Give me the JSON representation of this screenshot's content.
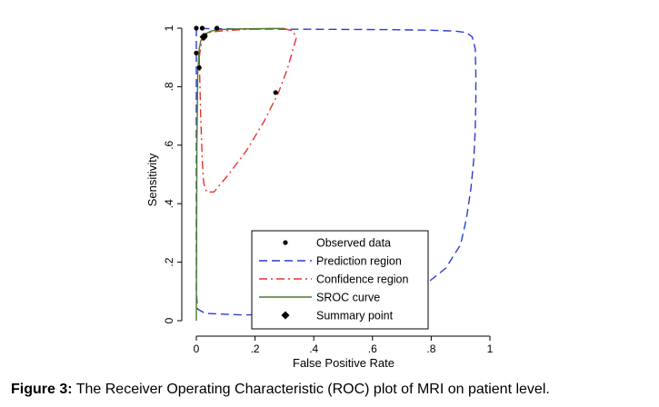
{
  "caption": {
    "label": "Figure 3:",
    "text": " The Receiver Operating Characteristic (ROC) plot of MRI on patient level."
  },
  "chart_data": {
    "type": "scatter",
    "xlabel": "False Positive Rate",
    "ylabel": "Sensitivity",
    "xlim": [
      0,
      1
    ],
    "ylim": [
      0,
      1
    ],
    "x_ticks": [
      {
        "value": 0,
        "label": "0"
      },
      {
        "value": 0.2,
        "label": ".2"
      },
      {
        "value": 0.4,
        "label": ".4"
      },
      {
        "value": 0.6,
        "label": ".6"
      },
      {
        "value": 0.8,
        "label": ".8"
      },
      {
        "value": 1,
        "label": "1"
      }
    ],
    "y_ticks": [
      {
        "value": 0,
        "label": "0"
      },
      {
        "value": 0.2,
        "label": ".2"
      },
      {
        "value": 0.4,
        "label": ".4"
      },
      {
        "value": 0.6,
        "label": ".6"
      },
      {
        "value": 0.8,
        "label": ".8"
      },
      {
        "value": 1,
        "label": "1"
      }
    ],
    "grid": false,
    "legend_position": "bottom-center",
    "series": [
      {
        "name": "Observed data",
        "kind": "points",
        "color": "#000000",
        "x": [
          0.0,
          0.02,
          0.0,
          0.01,
          0.03,
          0.07,
          0.27
        ],
        "y": [
          1.0,
          1.0,
          0.915,
          0.865,
          0.975,
          1.0,
          0.78
        ]
      },
      {
        "name": "Prediction region",
        "kind": "dashed-line",
        "color": "#2b3bd4",
        "x": [
          0.0,
          0.0,
          0.0,
          0.004,
          0.03,
          0.15,
          0.3,
          0.45,
          0.55,
          0.65,
          0.75,
          0.85,
          0.9,
          0.92,
          0.935,
          0.945,
          0.95,
          0.952,
          0.952,
          0.95,
          0.94,
          0.92,
          0.88,
          0.8,
          0.65,
          0.45,
          0.2,
          0.05,
          0.01,
          0.0
        ],
        "y": [
          1.0,
          0.6,
          0.1,
          0.04,
          0.025,
          0.02,
          0.02,
          0.025,
          0.035,
          0.06,
          0.1,
          0.18,
          0.26,
          0.35,
          0.45,
          0.55,
          0.65,
          0.75,
          0.85,
          0.93,
          0.97,
          0.985,
          0.99,
          0.993,
          0.995,
          0.996,
          0.997,
          0.998,
          0.999,
          1.0
        ]
      },
      {
        "name": "Confidence region",
        "kind": "dash-dot-line",
        "color": "#e8322c",
        "x": [
          0.01,
          0.015,
          0.02,
          0.025,
          0.035,
          0.06,
          0.11,
          0.17,
          0.23,
          0.28,
          0.31,
          0.33,
          0.34,
          0.33,
          0.3,
          0.24,
          0.15,
          0.08,
          0.04,
          0.025,
          0.02,
          0.015,
          0.01
        ],
        "y": [
          0.9,
          0.7,
          0.55,
          0.47,
          0.44,
          0.44,
          0.5,
          0.58,
          0.68,
          0.78,
          0.86,
          0.93,
          0.965,
          0.99,
          0.998,
          0.998,
          0.995,
          0.99,
          0.985,
          0.975,
          0.96,
          0.935,
          0.9
        ]
      },
      {
        "name": "SROC curve",
        "kind": "solid-line",
        "color": "#4a7a28",
        "x": [
          0.0,
          0.002,
          0.005,
          0.01,
          0.015,
          0.02,
          0.03,
          0.05,
          0.08,
          0.12,
          0.2,
          0.3
        ],
        "y": [
          0.0,
          0.6,
          0.85,
          0.93,
          0.955,
          0.968,
          0.98,
          0.99,
          0.995,
          0.997,
          0.998,
          0.999
        ]
      },
      {
        "name": "Summary point",
        "kind": "diamond",
        "color": "#000000",
        "x": [
          0.025
        ],
        "y": [
          0.97
        ]
      }
    ]
  }
}
